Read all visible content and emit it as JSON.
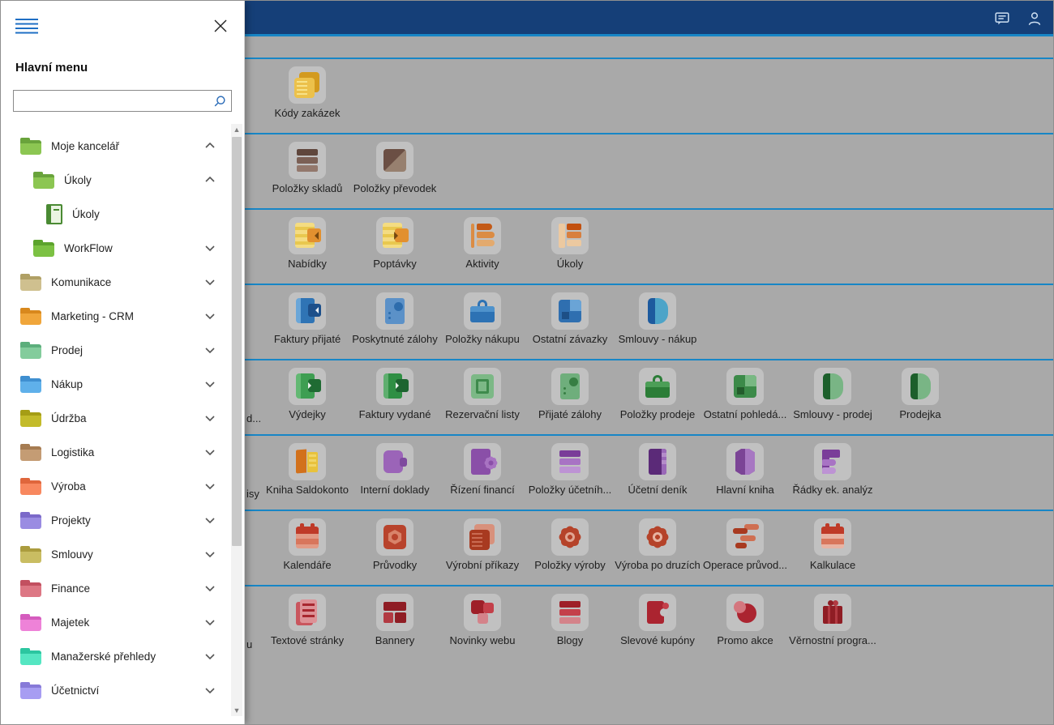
{
  "sidebar": {
    "title": "Hlavní menu",
    "search": {
      "value": "",
      "placeholder": ""
    },
    "items": [
      {
        "label": "Moje kancelář",
        "level": 0,
        "icon": "folder",
        "body": "#8cc652",
        "tab": "#69a33b",
        "chevron": "up"
      },
      {
        "label": "Úkoly",
        "level": 1,
        "icon": "folder",
        "body": "#8cc652",
        "tab": "#69a33b",
        "chevron": "up"
      },
      {
        "label": "Úkoly",
        "level": 2,
        "icon": "notebook",
        "body": "#eaf4e2",
        "tab": "#4a8a33",
        "chevron": "none"
      },
      {
        "label": "WorkFlow",
        "level": 1,
        "icon": "folder",
        "body": "#7cc143",
        "tab": "#5ca32c",
        "chevron": "down"
      },
      {
        "label": "Komunikace",
        "level": 0,
        "icon": "folder",
        "body": "#cfc08f",
        "tab": "#b0a065",
        "chevron": "down"
      },
      {
        "label": "Marketing - CRM",
        "level": 0,
        "icon": "folder",
        "body": "#f0a63b",
        "tab": "#d8881d",
        "chevron": "down"
      },
      {
        "label": "Prodej",
        "level": 0,
        "icon": "folder",
        "body": "#83cc9c",
        "tab": "#5cae7c",
        "chevron": "down"
      },
      {
        "label": "Nákup",
        "level": 0,
        "icon": "folder",
        "body": "#5fb0ea",
        "tab": "#3f8fd0",
        "chevron": "down"
      },
      {
        "label": "Údržba",
        "level": 0,
        "icon": "folder",
        "body": "#c3bb2a",
        "tab": "#a59d15",
        "chevron": "down"
      },
      {
        "label": "Logistika",
        "level": 0,
        "icon": "folder",
        "body": "#c49c74",
        "tab": "#a67c52",
        "chevron": "down"
      },
      {
        "label": "Výroba",
        "level": 0,
        "icon": "folder",
        "body": "#f8885f",
        "tab": "#df663c",
        "chevron": "down"
      },
      {
        "label": "Projekty",
        "level": 0,
        "icon": "folder",
        "body": "#9a8ce2",
        "tab": "#7b69c9",
        "chevron": "down"
      },
      {
        "label": "Smlouvy",
        "level": 0,
        "icon": "folder",
        "body": "#c9bd62",
        "tab": "#ab9c3e",
        "chevron": "down"
      },
      {
        "label": "Finance",
        "level": 0,
        "icon": "folder",
        "body": "#dd7784",
        "tab": "#c25060",
        "chevron": "down"
      },
      {
        "label": "Majetek",
        "level": 0,
        "icon": "folder",
        "body": "#ee82d8",
        "tab": "#d55cbe",
        "chevron": "down"
      },
      {
        "label": "Manažerské přehledy",
        "level": 0,
        "icon": "folder",
        "body": "#55e6c2",
        "tab": "#2cc6a0",
        "chevron": "down"
      },
      {
        "label": "Účetnictví",
        "level": 0,
        "icon": "folder",
        "body": "#a79df2",
        "tab": "#877ad8",
        "chevron": "down"
      }
    ]
  },
  "topbar": {
    "background": "#153f78",
    "underline_color": "#1786c6",
    "icons": [
      "feedback-icon",
      "profile-icon"
    ]
  },
  "main": {
    "background": "#a9a9a9",
    "separator_color": "#1786c6",
    "rows": [
      {
        "partial_label": "",
        "tiles": [
          {
            "label": "Kódy zakázek",
            "name": "kody-zakazek-icon",
            "shape": "stack",
            "colors": [
              "#ecc14b",
              "#d39a1e",
              "#f7e289"
            ]
          }
        ]
      },
      {
        "partial_label": "",
        "tiles": [
          {
            "label": "Položky skladů",
            "name": "polozky-skladu-icon",
            "shape": "list",
            "colors": [
              "#5f463c",
              "#7b6055",
              "#93786c"
            ]
          },
          {
            "label": "Položky převodek",
            "name": "polozky-prevodek-icon",
            "shape": "split",
            "colors": [
              "#6b4f44",
              "#97806f",
              "#83695c"
            ]
          }
        ]
      },
      {
        "partial_label": "",
        "tiles": [
          {
            "label": "Nabídky",
            "name": "nabidky-icon",
            "shape": "doc-badge",
            "dir": "left",
            "colors": [
              "#e9c84f",
              "#f4dc82",
              "#e2902f"
            ]
          },
          {
            "label": "Poptávky",
            "name": "poptavky-icon",
            "shape": "doc-badge",
            "dir": "right",
            "colors": [
              "#e9c84f",
              "#f4dc82",
              "#e2902f"
            ]
          },
          {
            "label": "Aktivity",
            "name": "aktivity-icon",
            "shape": "tags",
            "colors": [
              "#c35a17",
              "#db8c44",
              "#e3aa6e"
            ]
          },
          {
            "label": "Úkoly",
            "name": "ukoly-icon",
            "shape": "tasks",
            "colors": [
              "#c2500f",
              "#d87f3f",
              "#ecc9a0"
            ]
          }
        ]
      },
      {
        "partial_label": "",
        "tiles": [
          {
            "label": "Faktury přijaté",
            "name": "faktury-prijate-icon",
            "shape": "book-badge",
            "dir": "left",
            "colors": [
              "#2f74b5",
              "#6aa6d8",
              "#1c4f8a"
            ]
          },
          {
            "label": "Poskytnuté zálohy",
            "name": "poskytnute-zalohy-icon",
            "shape": "card-dot",
            "colors": [
              "#5b91c8",
              "#2d6cac",
              "#2d6cac"
            ]
          },
          {
            "label": "Položky nákupu",
            "name": "polozky-nakupu-icon",
            "shape": "briefcase",
            "colors": [
              "#2d72b4",
              "#4e92cc",
              "#4e92cc"
            ]
          },
          {
            "label": "Ostatní závazky",
            "name": "ostatni-zavazky-icon",
            "shape": "mosaic",
            "colors": [
              "#2f6fb0",
              "#6aa4d6",
              "#1d4f86"
            ]
          },
          {
            "label": "Smlouvy - nákup",
            "name": "smlouvy-nakup-icon",
            "shape": "book-fold",
            "colors": [
              "#1d5a9e",
              "#4da4c8",
              "#4da4c8"
            ]
          }
        ]
      },
      {
        "partial_label": "d...",
        "tiles": [
          {
            "label": "Výdejky",
            "name": "vydejky-icon",
            "shape": "book-badge",
            "dir": "right",
            "colors": [
              "#3e9e52",
              "#63b873",
              "#1f6b33"
            ]
          },
          {
            "label": "Faktury vydané",
            "name": "faktury-vydane-icon",
            "shape": "book-badge",
            "dir": "right",
            "colors": [
              "#2f8f44",
              "#5fae6f",
              "#1d6430"
            ]
          },
          {
            "label": "Rezervační listy",
            "name": "rezervacni-listy-icon",
            "shape": "frame",
            "colors": [
              "#3e8a4c",
              "#7cb886",
              "#7cb886"
            ]
          },
          {
            "label": "Přijaté zálohy",
            "name": "prijate-zalohy-icon",
            "shape": "card-dot",
            "colors": [
              "#6fae7c",
              "#377e43",
              "#377e43"
            ]
          },
          {
            "label": "Položky prodeje",
            "name": "polozky-prodeje-icon",
            "shape": "briefcase",
            "colors": [
              "#2b7d37",
              "#4c9e57",
              "#4c9e57"
            ]
          },
          {
            "label": "Ostatní pohledá...",
            "name": "ostatni-pohledavky-icon",
            "shape": "mosaic",
            "colors": [
              "#3c8a49",
              "#79b883",
              "#235c2c"
            ]
          },
          {
            "label": "Smlouvy - prodej",
            "name": "smlouvy-prodej-icon",
            "shape": "book-fold",
            "colors": [
              "#1c5f2b",
              "#79b585",
              "#79b585"
            ]
          },
          {
            "label": "Prodejka",
            "name": "prodejka-icon",
            "shape": "book-fold",
            "colors": [
              "#1c5f2b",
              "#79b585",
              "#79b585"
            ]
          }
        ]
      },
      {
        "partial_label": "isy",
        "tiles": [
          {
            "label": "Kniha Saldokonto",
            "name": "kniha-saldokonto-icon",
            "shape": "open-book",
            "colors": [
              "#d2711c",
              "#e8c23c",
              "#f0d568"
            ]
          },
          {
            "label": "Interní doklady",
            "name": "interni-doklady-icon",
            "shape": "card-tab",
            "colors": [
              "#9b64b8",
              "#7e4a9e",
              "#7e4a9e"
            ]
          },
          {
            "label": "Řízení financí",
            "name": "rizeni-financi-icon",
            "shape": "card-gear",
            "colors": [
              "#8a4fa8",
              "#a873c2",
              "#9b64b8"
            ]
          },
          {
            "label": "Položky účetníh...",
            "name": "polozky-ucetnich-icon",
            "shape": "list",
            "colors": [
              "#7a3d99",
              "#a873c4",
              "#bd93d4"
            ]
          },
          {
            "label": "Účetní deník",
            "name": "ucetni-denik-icon",
            "shape": "book",
            "colors": [
              "#5b2a78",
              "#9a68b8",
              "#b48cc9"
            ]
          },
          {
            "label": "Hlavní kniha",
            "name": "hlavni-kniha-icon",
            "shape": "hexbook",
            "colors": [
              "#7b4496",
              "#a777c2",
              "#a777c2"
            ]
          },
          {
            "label": "Řádky ek. analýz",
            "name": "radky-ek-analyz-icon",
            "shape": "bars-left",
            "colors": [
              "#7a3d99",
              "#a873c4",
              "#bd93d4"
            ]
          }
        ]
      },
      {
        "partial_label": "",
        "tiles": [
          {
            "label": "Kalendáře",
            "name": "kalendare-icon",
            "shape": "calendar",
            "colors": [
              "#bf3a28",
              "#d8765c",
              "#e29a85"
            ]
          },
          {
            "label": "Průvodky",
            "name": "pruvodky-icon",
            "shape": "hexnut",
            "colors": [
              "#b8432c",
              "#d8836a",
              "#d8836a"
            ]
          },
          {
            "label": "Výrobní příkazy",
            "name": "vyrobni-prikazy-icon",
            "shape": "stack",
            "colors": [
              "#a83a20",
              "#d8917c",
              "#c96b52"
            ]
          },
          {
            "label": "Položky výroby",
            "name": "polozky-vyroby-icon",
            "shape": "gear",
            "colors": [
              "#b5432a",
              "#e0a592",
              "#e0a592"
            ]
          },
          {
            "label": "Výroba po druzích",
            "name": "vyroba-po-druzich-icon",
            "shape": "gear",
            "colors": [
              "#b5432a",
              "#e7b3a2",
              "#e7b3a2"
            ]
          },
          {
            "label": "Operace průvod...",
            "name": "operace-pruvodek-icon",
            "shape": "bars",
            "colors": [
              "#a83a20",
              "#cf6f52",
              "#cf6f52"
            ]
          },
          {
            "label": "Kalkulace",
            "name": "kalkulace-icon",
            "shape": "calendar",
            "colors": [
              "#bf3a28",
              "#d8765c",
              "#e8b3a3"
            ]
          }
        ]
      },
      {
        "partial_label": "u",
        "tiles": [
          {
            "label": "Textové stránky",
            "name": "textove-stranky-icon",
            "shape": "doc",
            "colors": [
              "#a8272f",
              "#dd9196",
              "#c9565e"
            ]
          },
          {
            "label": "Bannery",
            "name": "bannery-icon",
            "shape": "grid",
            "colors": [
              "#8f1d24",
              "#b23a42",
              "#b23a42"
            ]
          },
          {
            "label": "Novinky webu",
            "name": "novinky-webu-icon",
            "shape": "cluster-squares",
            "colors": [
              "#9e1f28",
              "#c4404a",
              "#d4838a"
            ]
          },
          {
            "label": "Blogy",
            "name": "blogy-icon",
            "shape": "list",
            "colors": [
              "#9e1f28",
              "#c4404a",
              "#d4838a"
            ]
          },
          {
            "label": "Slevové kupóny",
            "name": "slevove-kupony-icon",
            "shape": "ticket",
            "colors": [
              "#ab2430",
              "#c3c3c3",
              "#c4404a"
            ]
          },
          {
            "label": "Promo akce",
            "name": "promo-akce-icon",
            "shape": "cluster-circles",
            "colors": [
              "#ab2430",
              "#d4767e",
              "#d4767e"
            ]
          },
          {
            "label": "Věrnostní progra...",
            "name": "vernostni-program-icon",
            "shape": "gift",
            "colors": [
              "#8f1d24",
              "#b23a42",
              "#b23a42"
            ]
          }
        ]
      }
    ]
  }
}
